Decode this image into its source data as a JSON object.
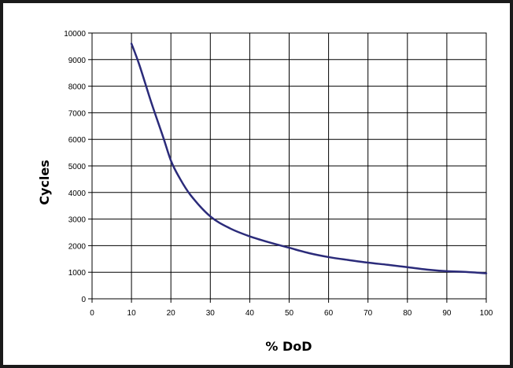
{
  "chart_data": {
    "type": "line",
    "xlabel": "% DoD",
    "ylabel": "Cycles",
    "xlim": [
      0,
      100
    ],
    "ylim": [
      0,
      10000
    ],
    "xticks": [
      0,
      10,
      20,
      30,
      40,
      50,
      60,
      70,
      80,
      90,
      100
    ],
    "yticks": [
      0,
      1000,
      2000,
      3000,
      4000,
      5000,
      6000,
      7000,
      8000,
      9000,
      10000
    ],
    "grid": true,
    "legend": "none",
    "line_color": "#2b2b7a",
    "series": [
      {
        "x": [
          10,
          12,
          15,
          18,
          20,
          22,
          25,
          30,
          35,
          40,
          45,
          50,
          55,
          60,
          65,
          70,
          75,
          80,
          85,
          90,
          95,
          100
        ],
        "values": [
          9600,
          8800,
          7400,
          6100,
          5200,
          4600,
          3900,
          3100,
          2650,
          2350,
          2120,
          1920,
          1720,
          1570,
          1460,
          1360,
          1280,
          1190,
          1100,
          1040,
          1010,
          960
        ]
      }
    ]
  }
}
